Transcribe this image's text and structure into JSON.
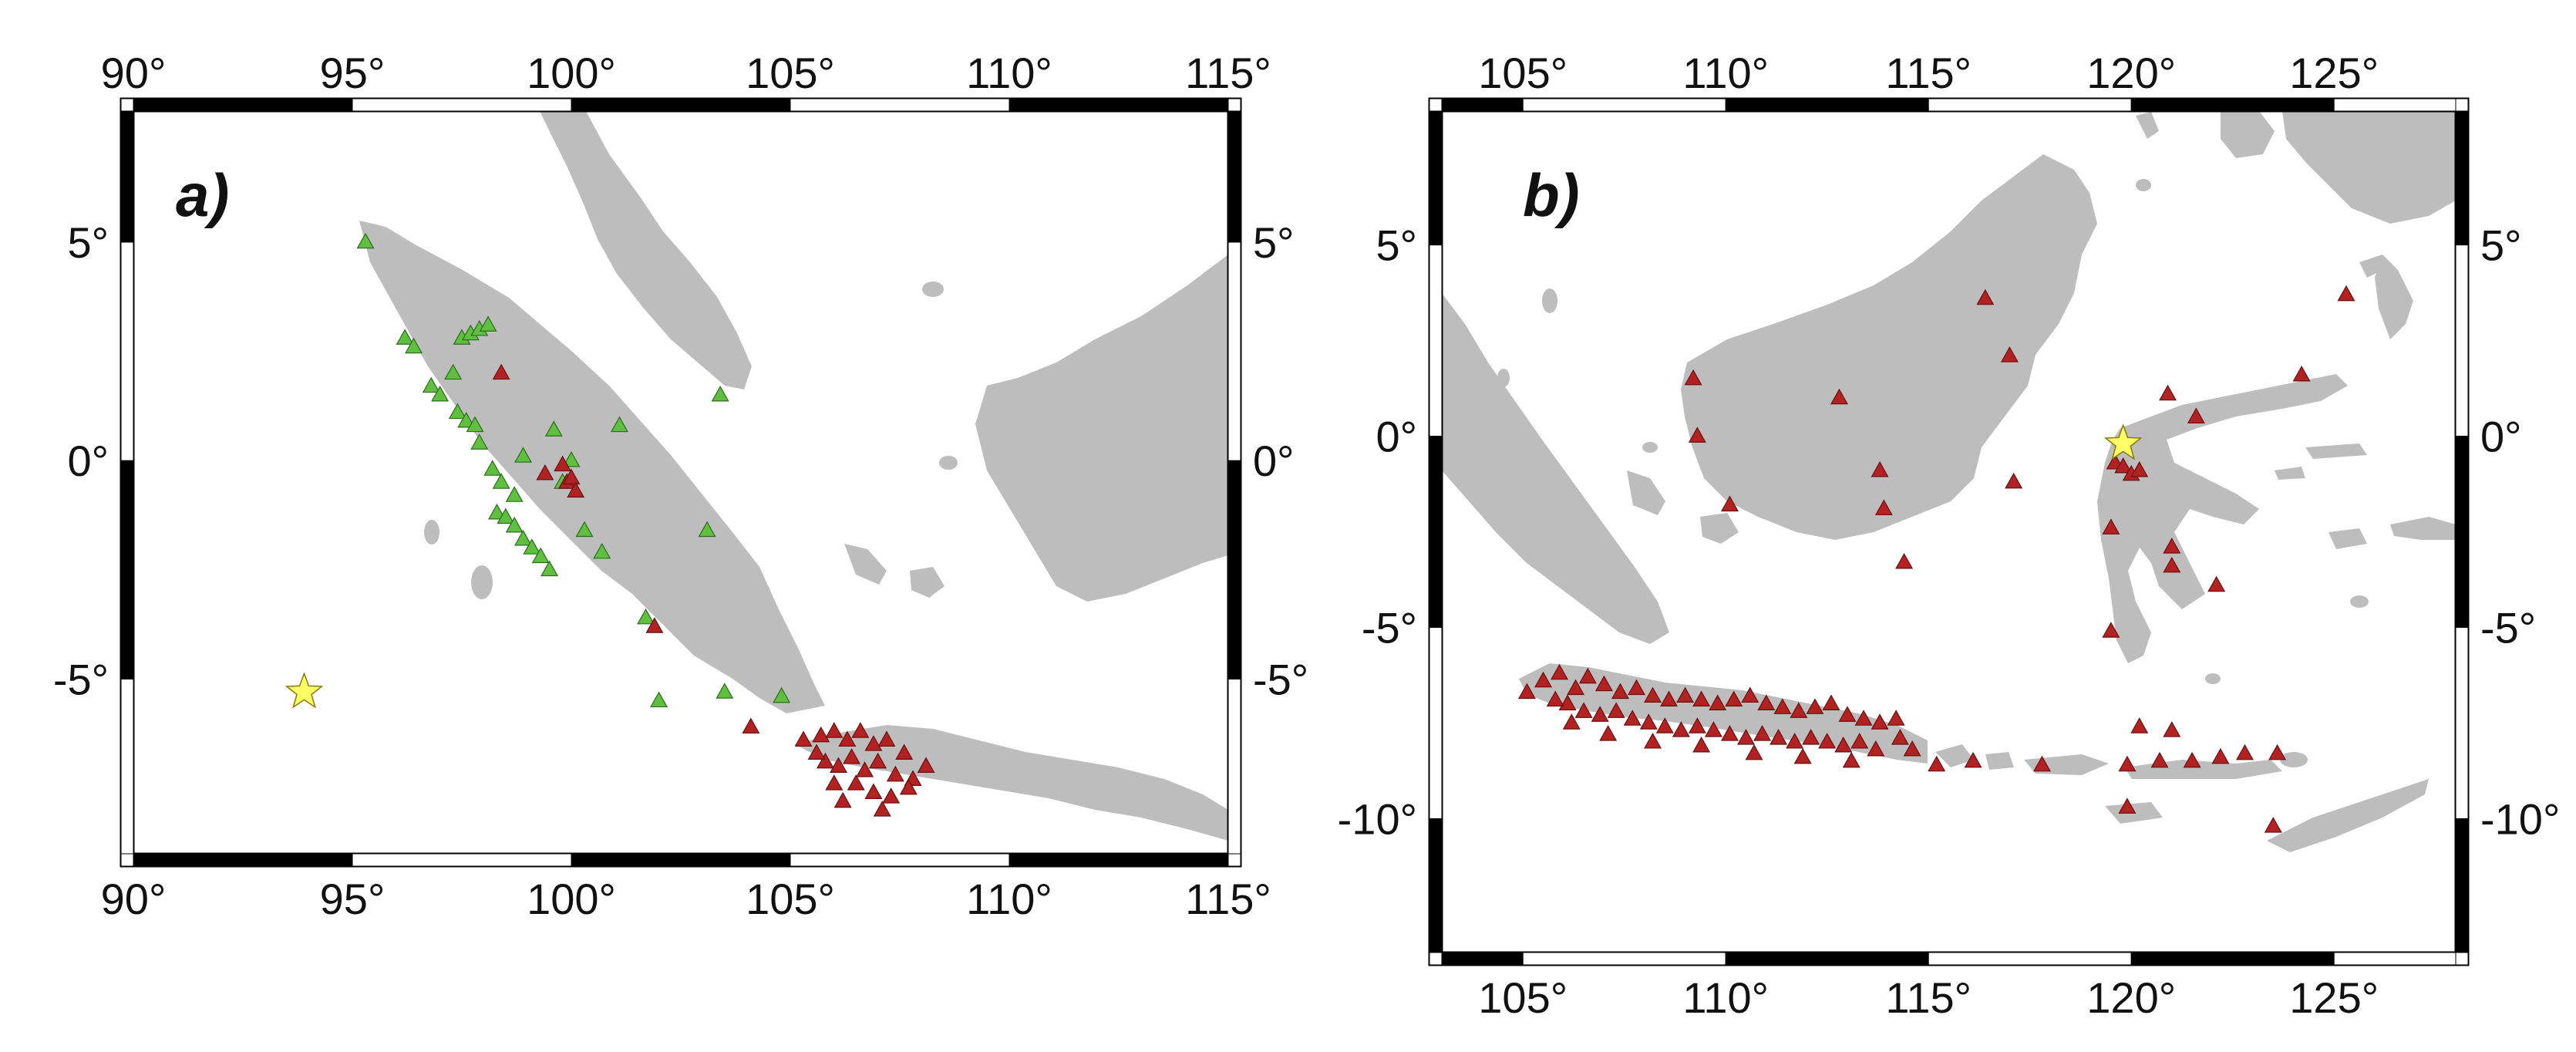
{
  "colors": {
    "land": "#bdbdbd",
    "ocean": "#ffffff",
    "frame_dark": "#000000",
    "station_green": "#5fbf3f",
    "station_red": "#b22222",
    "epicenter_star": "#ffff66"
  },
  "panels": [
    {
      "id": "a",
      "label": "a)",
      "lon_range": [
        90,
        115
      ],
      "lat_range": [
        -9,
        8
      ],
      "lon_ticks": [
        90,
        95,
        100,
        105,
        110,
        115
      ],
      "lat_ticks": [
        5,
        0,
        -5
      ],
      "lon_tick_labels": [
        "90°",
        "95°",
        "100°",
        "105°",
        "110°",
        "115°"
      ],
      "lat_tick_labels": [
        "5°",
        "0°",
        "-5°"
      ],
      "epicenter": {
        "lon": 93.9,
        "lat": -5.3,
        "symbol": "star-icon"
      },
      "stations": {
        "green": [
          [
            95.3,
            5.0
          ],
          [
            96.2,
            2.8
          ],
          [
            96.4,
            2.6
          ],
          [
            96.8,
            1.7
          ],
          [
            97.0,
            1.5
          ],
          [
            97.3,
            2.0
          ],
          [
            97.5,
            2.8
          ],
          [
            97.7,
            2.9
          ],
          [
            97.9,
            3.0
          ],
          [
            98.1,
            3.1
          ],
          [
            97.4,
            1.1
          ],
          [
            97.6,
            0.9
          ],
          [
            97.8,
            0.8
          ],
          [
            97.9,
            0.4
          ],
          [
            98.2,
            -0.2
          ],
          [
            98.4,
            -0.5
          ],
          [
            98.7,
            -0.8
          ],
          [
            98.9,
            0.1
          ],
          [
            98.3,
            -1.2
          ],
          [
            98.5,
            -1.3
          ],
          [
            98.7,
            -1.5
          ],
          [
            98.9,
            -1.8
          ],
          [
            99.1,
            -2.0
          ],
          [
            99.3,
            -2.2
          ],
          [
            99.5,
            -2.5
          ],
          [
            99.6,
            0.7
          ],
          [
            100.0,
            0.0
          ],
          [
            99.8,
            -0.5
          ],
          [
            100.3,
            -1.6
          ],
          [
            100.7,
            -2.1
          ],
          [
            101.1,
            0.8
          ],
          [
            101.7,
            -3.6
          ],
          [
            103.1,
            -1.6
          ],
          [
            103.4,
            1.5
          ],
          [
            102.0,
            -5.5
          ],
          [
            103.5,
            -5.3
          ],
          [
            104.8,
            -5.4
          ]
        ],
        "red": [
          [
            98.4,
            2.0
          ],
          [
            99.4,
            -0.3
          ],
          [
            99.8,
            -0.1
          ],
          [
            99.9,
            -0.5
          ],
          [
            100.0,
            -0.4
          ],
          [
            100.1,
            -0.7
          ],
          [
            101.9,
            -3.8
          ],
          [
            104.1,
            -6.1
          ],
          [
            105.3,
            -6.4
          ],
          [
            105.7,
            -6.3
          ],
          [
            106.0,
            -6.2
          ],
          [
            106.3,
            -6.4
          ],
          [
            106.6,
            -6.2
          ],
          [
            106.9,
            -6.5
          ],
          [
            107.2,
            -6.4
          ],
          [
            107.6,
            -6.7
          ],
          [
            108.1,
            -7.0
          ],
          [
            105.8,
            -6.9
          ],
          [
            106.1,
            -7.0
          ],
          [
            106.4,
            -6.8
          ],
          [
            106.7,
            -7.1
          ],
          [
            107.0,
            -6.9
          ],
          [
            107.4,
            -7.2
          ],
          [
            107.8,
            -7.3
          ],
          [
            106.0,
            -7.4
          ],
          [
            106.5,
            -7.4
          ],
          [
            106.9,
            -7.6
          ],
          [
            107.3,
            -7.7
          ],
          [
            107.7,
            -7.5
          ],
          [
            105.6,
            -6.7
          ],
          [
            106.2,
            -7.8
          ],
          [
            107.1,
            -8.0
          ]
        ]
      }
    },
    {
      "id": "b",
      "label": "b)",
      "lon_range": [
        103,
        128
      ],
      "lat_range": [
        -13.5,
        8.5
      ],
      "lon_ticks": [
        105,
        110,
        115,
        120,
        125
      ],
      "lat_ticks": [
        5,
        0,
        -5,
        -10
      ],
      "lon_tick_labels": [
        "105°",
        "110°",
        "115°",
        "120°",
        "125°"
      ],
      "lat_tick_labels": [
        "5°",
        "0°",
        "-5°",
        "-10°"
      ],
      "epicenter": {
        "lon": 119.8,
        "lat": -0.2,
        "symbol": "star-icon"
      },
      "stations": {
        "green": [],
        "red": [
          [
            109.2,
            1.5
          ],
          [
            109.3,
            0.0
          ],
          [
            110.1,
            -1.8
          ],
          [
            112.8,
            1.0
          ],
          [
            113.8,
            -0.9
          ],
          [
            113.9,
            -1.9
          ],
          [
            114.4,
            -3.3
          ],
          [
            116.4,
            3.6
          ],
          [
            117.0,
            2.1
          ],
          [
            117.1,
            -1.2
          ],
          [
            120.9,
            1.1
          ],
          [
            121.6,
            0.5
          ],
          [
            124.2,
            1.6
          ],
          [
            125.3,
            3.7
          ],
          [
            119.6,
            -0.7
          ],
          [
            119.8,
            -0.8
          ],
          [
            120.0,
            -1.0
          ],
          [
            120.2,
            -0.9
          ],
          [
            119.5,
            -2.4
          ],
          [
            121.0,
            -3.4
          ],
          [
            121.0,
            -2.9
          ],
          [
            122.1,
            -3.9
          ],
          [
            119.5,
            -5.1
          ],
          [
            105.1,
            -6.7
          ],
          [
            105.5,
            -6.4
          ],
          [
            105.9,
            -6.2
          ],
          [
            106.3,
            -6.6
          ],
          [
            106.6,
            -6.3
          ],
          [
            107.0,
            -6.5
          ],
          [
            107.4,
            -6.7
          ],
          [
            107.8,
            -6.6
          ],
          [
            108.2,
            -6.8
          ],
          [
            108.6,
            -6.9
          ],
          [
            109.0,
            -6.8
          ],
          [
            109.4,
            -6.9
          ],
          [
            109.8,
            -7.0
          ],
          [
            110.2,
            -6.9
          ],
          [
            110.6,
            -6.8
          ],
          [
            111.0,
            -7.0
          ],
          [
            111.4,
            -7.1
          ],
          [
            111.8,
            -7.2
          ],
          [
            112.2,
            -7.1
          ],
          [
            112.6,
            -7.0
          ],
          [
            113.0,
            -7.3
          ],
          [
            113.4,
            -7.4
          ],
          [
            113.8,
            -7.5
          ],
          [
            114.2,
            -7.4
          ],
          [
            106.1,
            -7.0
          ],
          [
            106.5,
            -7.2
          ],
          [
            106.9,
            -7.3
          ],
          [
            107.3,
            -7.2
          ],
          [
            107.7,
            -7.4
          ],
          [
            108.1,
            -7.5
          ],
          [
            108.5,
            -7.6
          ],
          [
            108.9,
            -7.7
          ],
          [
            109.3,
            -7.6
          ],
          [
            109.7,
            -7.7
          ],
          [
            110.1,
            -7.8
          ],
          [
            110.5,
            -7.9
          ],
          [
            110.9,
            -7.8
          ],
          [
            111.3,
            -7.9
          ],
          [
            111.7,
            -8.0
          ],
          [
            112.1,
            -7.9
          ],
          [
            112.5,
            -8.0
          ],
          [
            112.9,
            -8.1
          ],
          [
            113.3,
            -8.0
          ],
          [
            113.7,
            -8.2
          ],
          [
            114.3,
            -7.9
          ],
          [
            114.6,
            -8.2
          ],
          [
            105.8,
            -6.9
          ],
          [
            106.2,
            -7.5
          ],
          [
            107.1,
            -7.8
          ],
          [
            108.2,
            -8.0
          ],
          [
            109.4,
            -8.1
          ],
          [
            110.7,
            -8.3
          ],
          [
            111.9,
            -8.4
          ],
          [
            113.1,
            -8.5
          ],
          [
            115.2,
            -8.6
          ],
          [
            116.1,
            -8.5
          ],
          [
            117.8,
            -8.6
          ],
          [
            119.9,
            -8.6
          ],
          [
            120.7,
            -8.5
          ],
          [
            121.5,
            -8.5
          ],
          [
            122.2,
            -8.4
          ],
          [
            122.8,
            -8.3
          ],
          [
            123.6,
            -8.3
          ],
          [
            120.2,
            -7.6
          ],
          [
            121.0,
            -7.7
          ],
          [
            119.9,
            -9.7
          ],
          [
            123.5,
            -10.2
          ]
        ]
      }
    }
  ]
}
